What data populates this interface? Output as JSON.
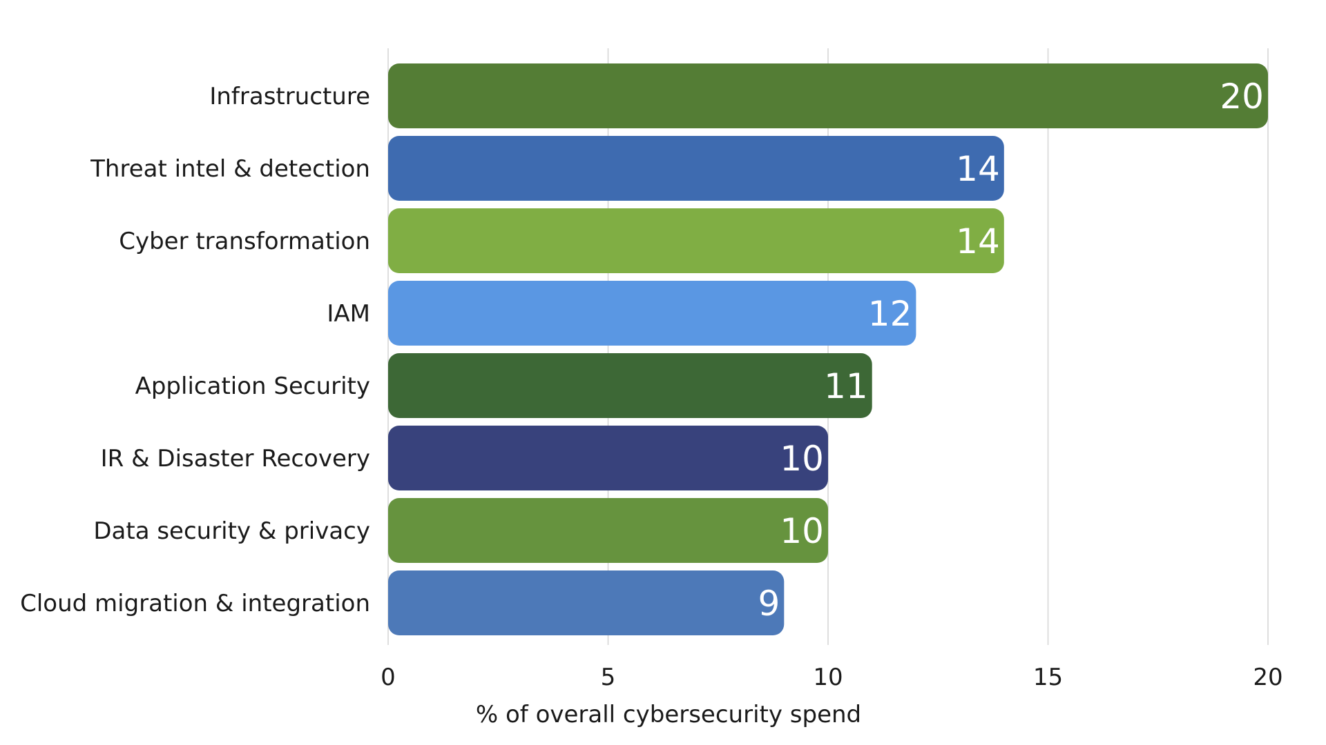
{
  "chart_data": {
    "type": "bar",
    "orientation": "horizontal",
    "categories": [
      "Infrastructure",
      "Threat intel & detection",
      "Cyber transformation",
      "IAM",
      "Application Security",
      "IR & Disaster Recovery",
      "Data security & privacy",
      "Cloud migration & integration"
    ],
    "values": [
      20,
      14,
      14,
      12,
      11,
      10,
      10,
      9
    ],
    "bar_colors": [
      "#547d35",
      "#3e6bb0",
      "#80ae44",
      "#5a97e3",
      "#3d6836",
      "#38427c",
      "#66933e",
      "#4d79b8"
    ],
    "xlabel": "% of overall cybersecurity spend",
    "ylabel": "",
    "xlim": [
      0,
      20
    ],
    "xticks": [
      0,
      5,
      10,
      15,
      20
    ],
    "grid": "vertical",
    "legend": "none"
  }
}
